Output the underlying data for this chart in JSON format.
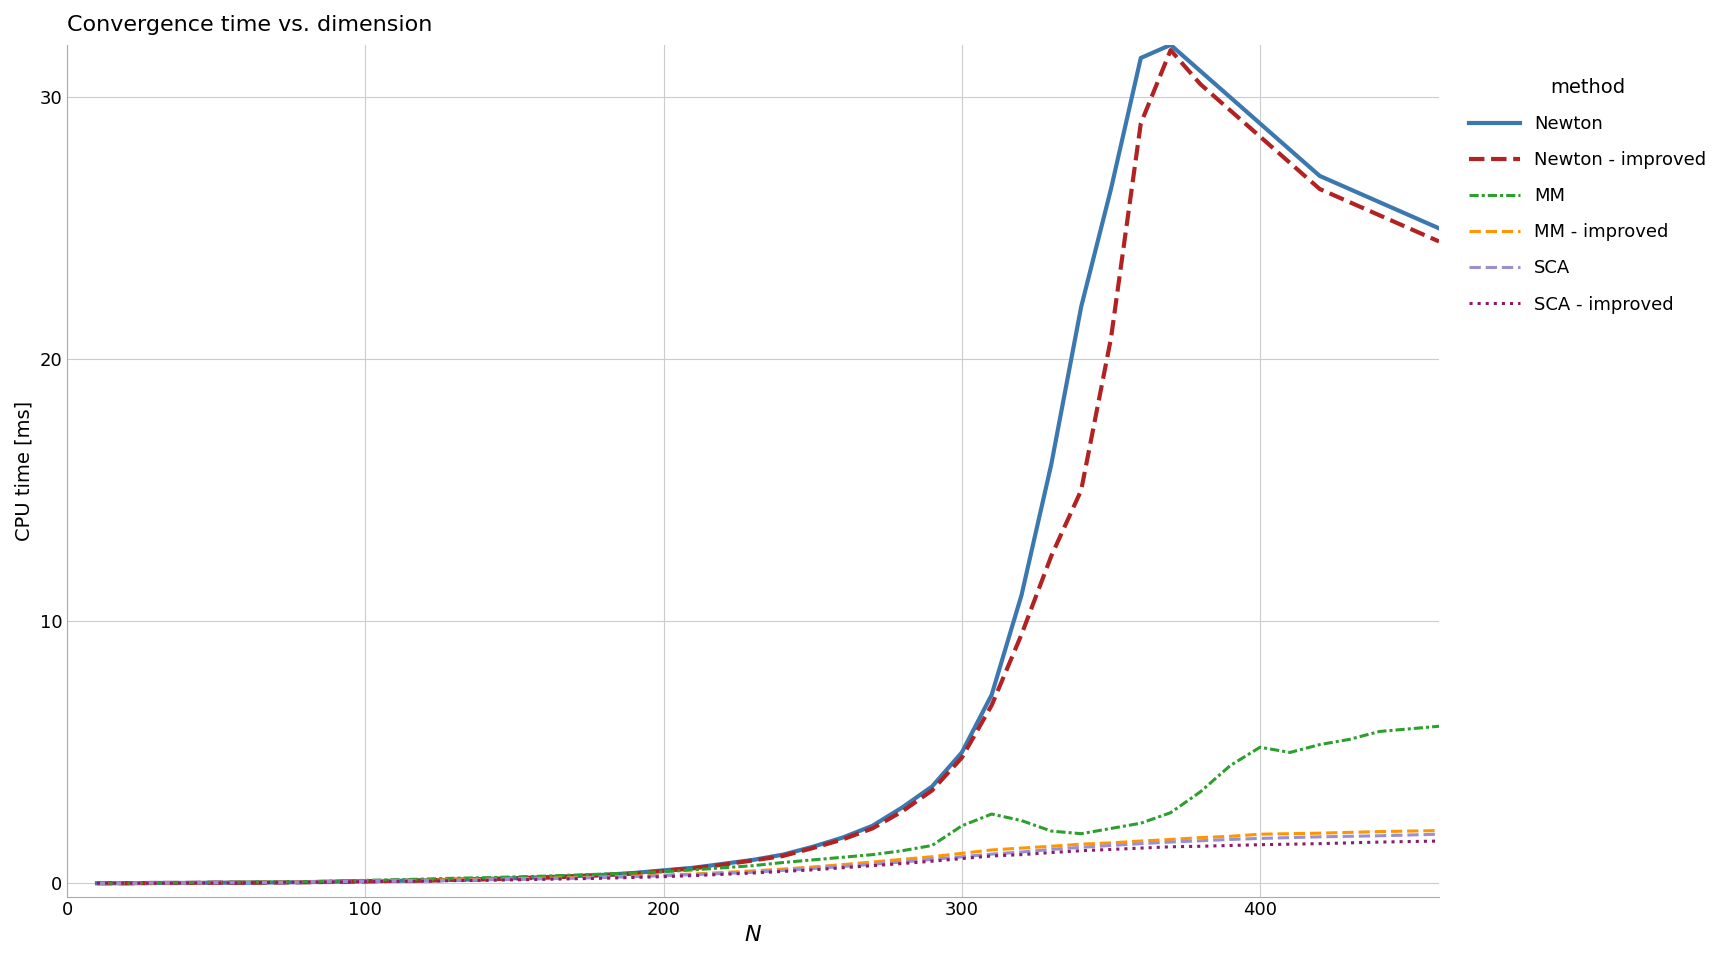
{
  "title": "Convergence time vs. dimension",
  "xlabel": "N",
  "ylabel": "CPU time [ms]",
  "xlim": [
    10,
    460
  ],
  "ylim": [
    -0.5,
    32
  ],
  "yticks": [
    0,
    10,
    20,
    30
  ],
  "xticks": [
    0,
    100,
    200,
    300,
    400
  ],
  "background_color": "#ffffff",
  "grid_color": "#cccccc",
  "legend_title": "method",
  "legend_labels": [
    "Newton",
    "Newton - improved",
    "MM",
    "MM - improved",
    "SCA",
    "SCA - improved"
  ],
  "colors": {
    "Newton": "#3b78b0",
    "Newton - improved": "#b22222",
    "MM": "#2ca02c",
    "MM - improved": "#ff9500",
    "SCA": "#9b8fd4",
    "SCA - improved": "#8b1a6b"
  },
  "x": [
    10,
    20,
    30,
    40,
    50,
    60,
    70,
    80,
    90,
    100,
    110,
    120,
    130,
    140,
    150,
    160,
    170,
    180,
    190,
    200,
    210,
    220,
    230,
    240,
    250,
    260,
    270,
    280,
    290,
    300,
    310,
    320,
    330,
    340,
    350,
    360,
    370,
    380,
    390,
    400,
    410,
    420,
    430,
    440,
    450,
    460
  ],
  "y": {
    "Newton": [
      0.01,
      0.01,
      0.02,
      0.02,
      0.03,
      0.03,
      0.04,
      0.05,
      0.07,
      0.09,
      0.1,
      0.12,
      0.14,
      0.17,
      0.2,
      0.24,
      0.28,
      0.33,
      0.4,
      0.5,
      0.6,
      0.75,
      0.9,
      1.1,
      1.4,
      1.75,
      2.2,
      2.9,
      3.7,
      5.0,
      7.2,
      11.0,
      16.0,
      22.0,
      26.5,
      31.5,
      32.0,
      31.0,
      30.0,
      29.0,
      28.0,
      27.0,
      26.5,
      26.0,
      25.5,
      25.0
    ],
    "Newton - improved": [
      0.01,
      0.01,
      0.02,
      0.02,
      0.03,
      0.03,
      0.04,
      0.05,
      0.06,
      0.08,
      0.1,
      0.11,
      0.14,
      0.16,
      0.19,
      0.22,
      0.27,
      0.32,
      0.38,
      0.48,
      0.58,
      0.72,
      0.88,
      1.05,
      1.35,
      1.68,
      2.1,
      2.75,
      3.55,
      4.8,
      6.8,
      9.5,
      12.5,
      15.0,
      20.8,
      29.0,
      31.8,
      30.5,
      29.5,
      28.5,
      27.5,
      26.5,
      26.0,
      25.5,
      25.0,
      24.5
    ],
    "MM": [
      0.01,
      0.01,
      0.02,
      0.03,
      0.04,
      0.05,
      0.06,
      0.07,
      0.09,
      0.12,
      0.14,
      0.17,
      0.2,
      0.22,
      0.25,
      0.28,
      0.32,
      0.36,
      0.4,
      0.45,
      0.52,
      0.6,
      0.68,
      0.8,
      0.9,
      1.0,
      1.1,
      1.25,
      1.45,
      2.2,
      2.65,
      2.4,
      2.0,
      1.9,
      2.1,
      2.3,
      2.7,
      3.5,
      4.5,
      5.2,
      5.0,
      5.3,
      5.5,
      5.8,
      5.9,
      6.0
    ],
    "MM - improved": [
      0.01,
      0.01,
      0.02,
      0.02,
      0.03,
      0.04,
      0.05,
      0.06,
      0.07,
      0.09,
      0.1,
      0.12,
      0.14,
      0.16,
      0.18,
      0.2,
      0.22,
      0.25,
      0.28,
      0.32,
      0.36,
      0.42,
      0.48,
      0.55,
      0.63,
      0.72,
      0.82,
      0.92,
      1.02,
      1.15,
      1.28,
      1.35,
      1.42,
      1.5,
      1.55,
      1.62,
      1.68,
      1.75,
      1.8,
      1.88,
      1.9,
      1.92,
      1.95,
      1.98,
      2.0,
      2.02
    ],
    "SCA": [
      0.01,
      0.01,
      0.02,
      0.02,
      0.03,
      0.04,
      0.05,
      0.06,
      0.07,
      0.08,
      0.09,
      0.1,
      0.12,
      0.14,
      0.16,
      0.18,
      0.2,
      0.23,
      0.26,
      0.3,
      0.34,
      0.38,
      0.43,
      0.5,
      0.57,
      0.65,
      0.73,
      0.82,
      0.92,
      1.02,
      1.12,
      1.2,
      1.3,
      1.38,
      1.45,
      1.52,
      1.58,
      1.63,
      1.68,
      1.72,
      1.75,
      1.78,
      1.8,
      1.82,
      1.85,
      1.88
    ],
    "SCA - improved": [
      0.01,
      0.01,
      0.01,
      0.02,
      0.02,
      0.03,
      0.04,
      0.05,
      0.06,
      0.07,
      0.08,
      0.09,
      0.11,
      0.12,
      0.14,
      0.16,
      0.18,
      0.2,
      0.23,
      0.26,
      0.3,
      0.35,
      0.4,
      0.46,
      0.52,
      0.6,
      0.68,
      0.76,
      0.85,
      0.95,
      1.05,
      1.1,
      1.18,
      1.25,
      1.3,
      1.35,
      1.4,
      1.42,
      1.45,
      1.48,
      1.5,
      1.52,
      1.55,
      1.58,
      1.6,
      1.62
    ]
  }
}
